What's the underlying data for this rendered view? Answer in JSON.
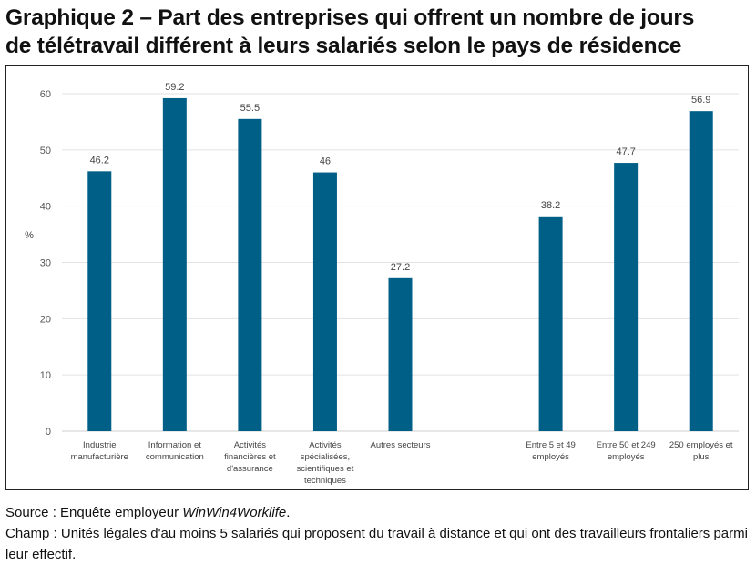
{
  "title_line1": "Graphique 2 – Part des entreprises qui offrent un nombre de jours",
  "title_line2": "de télétravail différent à leurs salariés selon le pays de résidence",
  "chart_data": {
    "type": "bar",
    "ylabel": "%",
    "ylim": [
      0,
      60
    ],
    "yticks": [
      0,
      10,
      20,
      30,
      40,
      50,
      60
    ],
    "grid": true,
    "bar_color": "#005f87",
    "categories": [
      [
        "Industrie",
        "manufacturière"
      ],
      [
        "Information et",
        "communication"
      ],
      [
        "Activités",
        "financières et",
        "d'assurance"
      ],
      [
        "Activités",
        "spécialisées,",
        "scientifiques et",
        "techniques"
      ],
      [
        "Autres secteurs"
      ],
      null,
      [
        "Entre 5 et 49",
        "employés"
      ],
      [
        "Entre 50 et 249",
        "employés"
      ],
      [
        "250 employés et",
        "plus"
      ]
    ],
    "values": [
      46.2,
      59.2,
      55.5,
      46,
      27.2,
      null,
      38.2,
      47.7,
      56.9
    ],
    "value_labels": [
      "46.2",
      "59.2",
      "55.5",
      "46",
      "27.2",
      null,
      "38.2",
      "47.7",
      "56.9"
    ]
  },
  "source_prefix": "Source : Enquête employeur ",
  "source_name": "WinWin4Worklife",
  "source_suffix": ".",
  "champ": "Champ : Unités légales d'au moins 5 salariés qui proposent du travail à distance et qui ont des travailleurs frontaliers parmi leur effectif."
}
